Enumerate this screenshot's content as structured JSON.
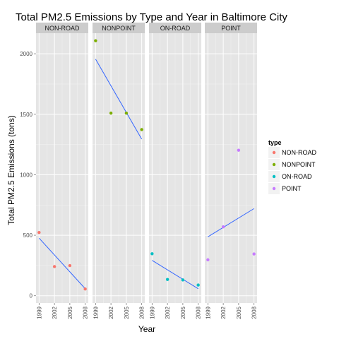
{
  "chart_data": {
    "type": "scatter",
    "title": "Total PM2.5 Emissions by Type and Year in Baltimore City",
    "xlabel": "Year",
    "ylabel": "Total PM2.5 Emissions (tons)",
    "facet_by": "type",
    "x_ticks": [
      1999,
      2002,
      2005,
      2008
    ],
    "xlim": [
      1998.4,
      2008.6
    ],
    "y_ticks": [
      0,
      500,
      1000,
      1500,
      2000
    ],
    "ylim": [
      -60,
      2170
    ],
    "grid": true,
    "smooth": "linear regression line per panel",
    "trend_color": "#3366ff",
    "legend": {
      "title": "type",
      "position": "right"
    },
    "panels": [
      {
        "name": "NON-ROAD",
        "color": "#f8766d",
        "x": [
          1999,
          2002,
          2005,
          2008
        ],
        "y": [
          522.94,
          240.85,
          248.93,
          55.82
        ]
      },
      {
        "name": "NONPOINT",
        "color": "#7cae00",
        "x": [
          1999,
          2002,
          2005,
          2008
        ],
        "y": [
          2107.63,
          1509.5,
          1509.5,
          1373.21
        ]
      },
      {
        "name": "ON-ROAD",
        "color": "#00bfc4",
        "x": [
          1999,
          2002,
          2005,
          2008
        ],
        "y": [
          346.82,
          134.31,
          130.43,
          88.28
        ]
      },
      {
        "name": "POINT",
        "color": "#c77cff",
        "x": [
          1999,
          2002,
          2005,
          2008
        ],
        "y": [
          296.8,
          569.26,
          1202.49,
          344.98
        ]
      }
    ]
  }
}
